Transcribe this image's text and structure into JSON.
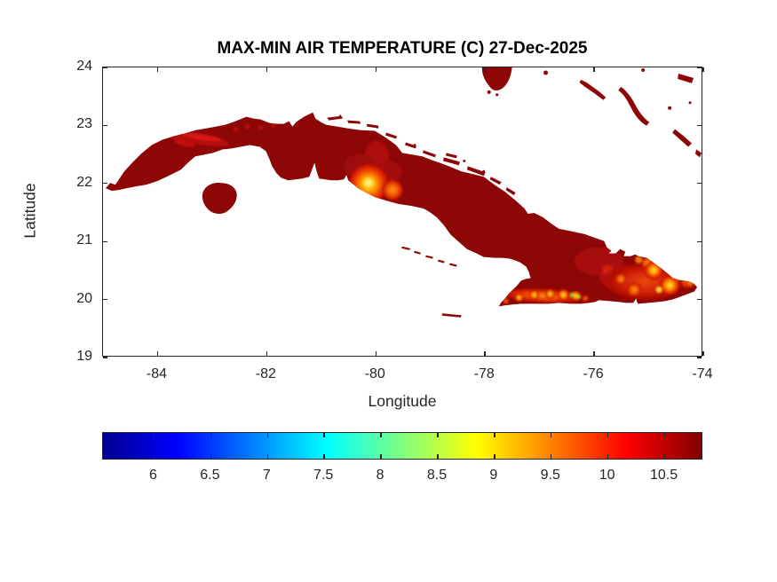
{
  "chart_data": {
    "type": "heatmap",
    "title": "MAX-MIN AIR TEMPERATURE (C) 27-Dec-2025",
    "xlabel": "Longitude",
    "ylabel": "Latitude",
    "xlim": [
      -85,
      -74
    ],
    "ylim": [
      19,
      24
    ],
    "x_ticks": [
      -84,
      -82,
      -80,
      -78,
      -76,
      -74
    ],
    "y_ticks": [
      24,
      23,
      22,
      21,
      20,
      19
    ],
    "grid": false,
    "background": "white = sea / no data",
    "region": "Cuba with Isla de la Juventud, north-coast cays, Jardines de la Reina and nearby Bahamas islands",
    "colormap": "jet",
    "colormap_stops": [
      [
        "#00008f",
        0
      ],
      [
        "#0000ff",
        12.5
      ],
      [
        "#00ffff",
        37.5
      ],
      [
        "#ffff00",
        62.5
      ],
      [
        "#ff0000",
        87.5
      ],
      [
        "#800000",
        100
      ]
    ],
    "colorbar": {
      "orientation": "horizontal",
      "position": "below plot",
      "ticks": [
        6,
        6.5,
        7,
        7.5,
        8,
        8.5,
        9,
        9.5,
        10,
        10.5
      ],
      "range": [
        5.55,
        10.84
      ],
      "units": "C"
    },
    "colors": {
      "island_base": "#8d0707",
      "bright_red": "#c41406",
      "orange_hotspot": "#ff8c14",
      "yellow_hotspot": "#ffe03a",
      "green_speck": "#7fd41f",
      "axis_text": "#262626",
      "title_text": "#000000"
    },
    "features": [
      {
        "area": "most of Cuba (lowlands)",
        "approx_value": 10.5,
        "appearance": "uniform dark red"
      },
      {
        "area": "Sierra del Rosario / Pinar del Rio ridge (~-83.9 to -82.9, lat 22.6)",
        "approx_value": 10.2,
        "appearance": "bright red streak"
      },
      {
        "area": "Escambray Mountains near Trinidad (~-80.1, 21.9)",
        "approx_value": 9.0,
        "appearance": "yellow core with orange ring hotspot"
      },
      {
        "area": "secondary Escambray spot (~-79.7, 21.85)",
        "approx_value": 9.6,
        "appearance": "orange spot"
      },
      {
        "area": "Sierra Maestra south coast (~-77.6 to -76.3, lat 19.9-20.2)",
        "approx_value": 9.2,
        "appearance": "orange-yellow mottled strip with isolated green specks (~8.2)"
      },
      {
        "area": "Santiago-Guantanamo / Sagua-Baracoa highlands (~-75.7 to -74.2, lat 20.1-20.7)",
        "approx_value": 9.4,
        "appearance": "large orange-yellow mottled field"
      },
      {
        "area": "Isla de la Juventud",
        "approx_value": 10.5,
        "appearance": "dark red"
      },
      {
        "area": "Bahamas islands (top right) and small cays",
        "approx_value": 10.6,
        "appearance": "dark red fragments"
      }
    ]
  },
  "layout_note": "MATLAB-style exported figure, white canvas, box axes with inward ticks on all four sides"
}
